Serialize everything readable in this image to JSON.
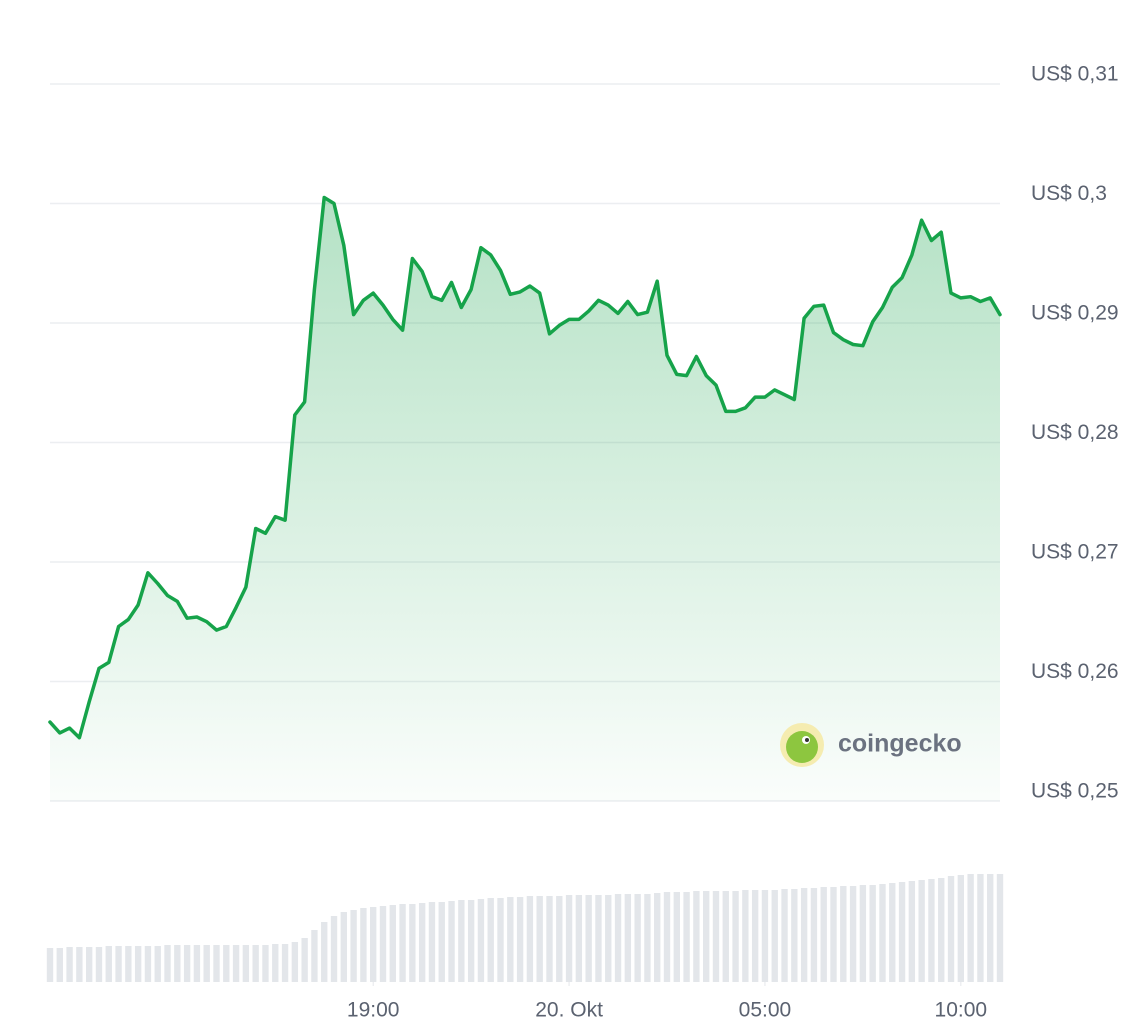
{
  "chart_data": {
    "type": "line",
    "watermark": "coingecko",
    "grid": true,
    "xlim": [
      10.75,
      35.0
    ],
    "ylim": [
      0.25,
      0.31
    ],
    "y2lim": [
      0,
      110
    ],
    "yticks": [
      {
        "value": 0.31,
        "label": "US$ 0,31"
      },
      {
        "value": 0.3,
        "label": "US$ 0,3"
      },
      {
        "value": 0.29,
        "label": "US$ 0,29"
      },
      {
        "value": 0.28,
        "label": "US$ 0,28"
      },
      {
        "value": 0.27,
        "label": "US$ 0,27"
      },
      {
        "value": 0.26,
        "label": "US$ 0,26"
      },
      {
        "value": 0.25,
        "label": "US$ 0,25"
      }
    ],
    "xticks": [
      {
        "value": 19,
        "label": "19:00"
      },
      {
        "value": 24,
        "label": "20. Okt"
      },
      {
        "value": 29,
        "label": "05:00"
      },
      {
        "value": 34,
        "label": "10:00"
      }
    ],
    "x": [
      10.75,
      11.0,
      11.25,
      11.5,
      11.75,
      12.0,
      12.25,
      12.5,
      12.75,
      13.0,
      13.25,
      13.5,
      13.75,
      14.0,
      14.25,
      14.5,
      14.75,
      15.0,
      15.25,
      15.5,
      15.75,
      16.0,
      16.25,
      16.5,
      16.75,
      17.0,
      17.25,
      17.5,
      17.75,
      18.0,
      18.25,
      18.5,
      18.75,
      19.0,
      19.25,
      19.5,
      19.75,
      20.0,
      20.25,
      20.5,
      20.75,
      21.0,
      21.25,
      21.5,
      21.75,
      22.0,
      22.25,
      22.5,
      22.75,
      23.0,
      23.25,
      23.5,
      23.75,
      24.0,
      24.25,
      24.5,
      24.75,
      25.0,
      25.25,
      25.5,
      25.75,
      26.0,
      26.25,
      26.5,
      26.75,
      27.0,
      27.25,
      27.5,
      27.75,
      28.0,
      28.25,
      28.5,
      28.75,
      29.0,
      29.25,
      29.5,
      29.75,
      30.0,
      30.25,
      30.5,
      30.75,
      31.0,
      31.25,
      31.5,
      31.75,
      32.0,
      32.25,
      32.5,
      32.75,
      33.0,
      33.25,
      33.5,
      33.75,
      34.0,
      34.25,
      34.5,
      34.75,
      35.0
    ],
    "series": [
      {
        "color": "#16a34a",
        "values": [
          0.2566,
          0.2557,
          0.2561,
          0.2553,
          0.2583,
          0.2611,
          0.2616,
          0.2646,
          0.2652,
          0.2664,
          0.2691,
          0.2682,
          0.2672,
          0.2667,
          0.2653,
          0.2654,
          0.265,
          0.2643,
          0.2646,
          0.2662,
          0.2679,
          0.2728,
          0.2724,
          0.2738,
          0.2735,
          0.2823,
          0.2834,
          0.2928,
          0.3005,
          0.3,
          0.2965,
          0.2907,
          0.2919,
          0.2925,
          0.2915,
          0.2903,
          0.2894,
          0.2954,
          0.2943,
          0.2922,
          0.2919,
          0.2934,
          0.2913,
          0.2928,
          0.2963,
          0.2957,
          0.2944,
          0.2924,
          0.2926,
          0.2931,
          0.2925,
          0.2891,
          0.2898,
          0.2903,
          0.2903,
          0.291,
          0.2919,
          0.2915,
          0.2908,
          0.2918,
          0.2907,
          0.2909,
          0.2935,
          0.2873,
          0.2857,
          0.2856,
          0.2872,
          0.2856,
          0.2848,
          0.2826,
          0.2826,
          0.2829,
          0.2838,
          0.2838,
          0.2844,
          0.284,
          0.2836,
          0.2904,
          0.2914,
          0.2915,
          0.2892,
          0.2886,
          0.2882,
          0.2881,
          0.2901,
          0.2913,
          0.293,
          0.2938,
          0.2957,
          0.2986,
          0.2969,
          0.2976,
          0.2925,
          0.2921,
          0.2922,
          0.2918,
          0.2921,
          0.2907
        ]
      },
      {
        "type": "bar",
        "axis": "y2",
        "color": "#e3e6ea",
        "values": [
          34,
          34,
          35,
          35,
          35,
          35,
          36,
          36,
          36,
          36,
          36,
          36,
          37,
          37,
          37,
          37,
          37,
          37,
          37,
          37,
          37,
          37,
          37,
          38,
          38,
          40,
          44,
          52,
          60,
          66,
          70,
          72,
          74,
          75,
          76,
          77,
          78,
          78,
          79,
          80,
          80,
          81,
          82,
          82,
          83,
          84,
          84,
          85,
          85,
          86,
          86,
          86,
          86,
          87,
          87,
          87,
          87,
          87,
          88,
          88,
          88,
          88,
          89,
          90,
          90,
          90,
          91,
          91,
          91,
          91,
          91,
          92,
          92,
          92,
          92,
          93,
          93,
          94,
          94,
          95,
          95,
          96,
          96,
          97,
          97,
          98,
          99,
          100,
          101,
          102,
          103,
          104,
          106,
          107,
          108,
          108,
          108,
          108
        ]
      }
    ]
  }
}
